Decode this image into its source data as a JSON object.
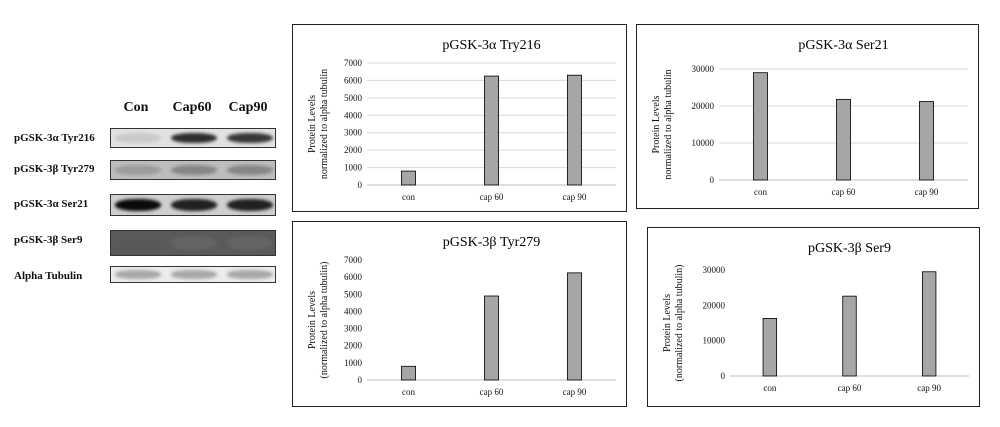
{
  "blot": {
    "lanes": [
      "Con",
      "Cap60",
      "Cap90"
    ],
    "rows": [
      {
        "label": "pGSK-3α Tyr216",
        "bands": [
          0.15,
          0.85,
          0.8
        ],
        "bg": "#e2e2e2"
      },
      {
        "label": "pGSK-3β Tyr279",
        "bands": [
          0.35,
          0.45,
          0.45
        ],
        "bg": "#bdbdbd"
      },
      {
        "label": "pGSK-3α Ser21",
        "bands": [
          1.0,
          0.9,
          0.9
        ],
        "bg": "#cfcfcf"
      },
      {
        "label": "pGSK-3β Ser9",
        "bands": [
          0.65,
          0.6,
          0.6
        ],
        "bg": "#5a5a5a"
      },
      {
        "label": "Alpha Tubulin",
        "bands": [
          0.3,
          0.3,
          0.3
        ],
        "bg": "#ececec"
      }
    ]
  },
  "colors": {
    "bar": "#a6a6a6",
    "bar_border": "#000000",
    "grid": "#d9d9d9"
  },
  "chart_data": [
    {
      "type": "bar",
      "title": "pGSK-3α Try216",
      "ylabel_lines": [
        "Protein Levels",
        "normalized to alpha tubulin"
      ],
      "categories": [
        "con",
        "cap 60",
        "cap 90"
      ],
      "values": [
        800,
        6250,
        6300
      ],
      "ylim": [
        0,
        7000
      ],
      "yticks": [
        0,
        1000,
        2000,
        3000,
        4000,
        5000,
        6000,
        7000
      ],
      "grid": true
    },
    {
      "type": "bar",
      "title": "pGSK-3α Ser21",
      "ylabel_lines": [
        "Protein Levels",
        "normalized to alpha tubulin"
      ],
      "categories": [
        "con",
        "cap 60",
        "cap 90"
      ],
      "values": [
        29000,
        21800,
        21200
      ],
      "ylim": [
        0,
        30000
      ],
      "yticks": [
        0,
        10000,
        20000,
        30000
      ],
      "grid": true
    },
    {
      "type": "bar",
      "title": "pGSK-3β Tyr279",
      "ylabel_lines": [
        "Protein Levels",
        "(normalized to alpha tubulin)"
      ],
      "categories": [
        "con",
        "cap 60",
        "cap 90"
      ],
      "values": [
        800,
        4900,
        6250
      ],
      "ylim": [
        0,
        7000
      ],
      "yticks": [
        0,
        1000,
        2000,
        3000,
        4000,
        5000,
        6000,
        7000
      ],
      "grid": false
    },
    {
      "type": "bar",
      "title": "pGSK-3β Ser9",
      "ylabel_lines": [
        "Protein Levels",
        "(normalized to alpha tubulin)"
      ],
      "categories": [
        "con",
        "cap 60",
        "cap 90"
      ],
      "values": [
        16300,
        22600,
        29500
      ],
      "ylim": [
        0,
        30000
      ],
      "yticks": [
        0,
        10000,
        20000,
        30000
      ],
      "grid": false
    }
  ]
}
